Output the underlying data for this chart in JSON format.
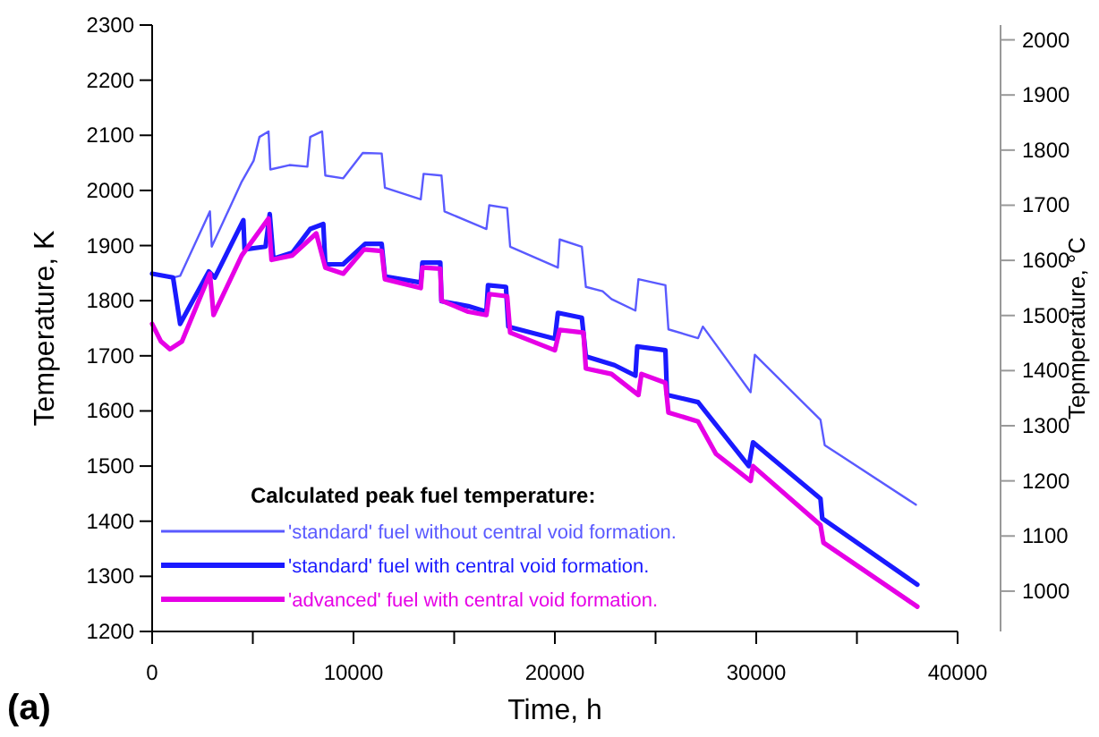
{
  "chart_data": {
    "type": "line",
    "xlabel": "Time, h",
    "ylabel": "Temperature, K",
    "y2label": "Tepmperature, °C",
    "legend_title": "Calculated peak fuel temperature:",
    "legend": "bottom left",
    "annotations": [
      "(a)"
    ],
    "xlim": [
      0,
      40000
    ],
    "xticks": [
      0,
      {
        "value": 5000,
        "label": null
      },
      10000,
      {
        "value": 15000,
        "label": null
      },
      20000,
      {
        "value": 25000,
        "label": null
      },
      30000,
      {
        "value": 35000,
        "label": null
      },
      40000
    ],
    "ylim": [
      1200,
      2300
    ],
    "yticks": [
      1200,
      1300,
      1400,
      1500,
      1600,
      1700,
      1800,
      1900,
      2000,
      2100,
      2200,
      2300
    ],
    "y2lim": [
      926.85,
      2026.85
    ],
    "y2ticks": [
      1000,
      1100,
      1200,
      1300,
      1400,
      1500,
      1600,
      1700,
      1800,
      1900,
      2000
    ],
    "grid": false,
    "line_style": "solid",
    "series": [
      {
        "name": "'standard' fuel without central void formation.",
        "color": "#5a5aff",
        "x": [
          0,
          1040,
          1390,
          2870,
          2960,
          4450,
          5040,
          5330,
          5780,
          5870,
          6820,
          7710,
          7850,
          8440,
          8600,
          9490,
          10460,
          11400,
          11560,
          13340,
          13480,
          14370,
          14520,
          16600,
          16740,
          17630,
          17780,
          20150,
          20240,
          21340,
          21540,
          22370,
          22810,
          24000,
          24150,
          25490,
          25640,
          27110,
          27350,
          29720,
          29930,
          33190,
          33400,
          37930
        ],
        "values": [
          1849,
          1842,
          1845,
          1962,
          1898,
          2016,
          2054,
          2097,
          2107,
          2038,
          2046,
          2043,
          2097,
          2107,
          2027,
          2022,
          2068,
          2067,
          2005,
          1984,
          2030,
          2027,
          1962,
          1930,
          1973,
          1968,
          1898,
          1860,
          1911,
          1898,
          1825,
          1817,
          1803,
          1782,
          1839,
          1828,
          1748,
          1732,
          1753,
          1634,
          1702,
          1584,
          1538,
          1430
        ]
      },
      {
        "name": "'standard' fuel with central void formation.",
        "color": "#1a1aff",
        "x": [
          0,
          1040,
          1390,
          2815,
          3110,
          4530,
          4590,
          5630,
          5840,
          6020,
          6960,
          7850,
          8500,
          8600,
          9480,
          10580,
          11400,
          11560,
          13340,
          13420,
          14310,
          14370,
          15700,
          16600,
          16680,
          17570,
          17690,
          20000,
          20150,
          21340,
          21540,
          22960,
          24000,
          24090,
          25490,
          25570,
          27110,
          28000,
          29630,
          29840,
          33190,
          33280,
          38000
        ],
        "values": [
          1849,
          1842,
          1758,
          1853,
          1842,
          1946,
          1893,
          1898,
          1957,
          1876,
          1887,
          1930,
          1939,
          1866,
          1866,
          1903,
          1903,
          1844,
          1833,
          1869,
          1869,
          1799,
          1790,
          1780,
          1828,
          1825,
          1753,
          1731,
          1778,
          1769,
          1699,
          1683,
          1664,
          1717,
          1710,
          1629,
          1616,
          1575,
          1500,
          1543,
          1441,
          1405,
          1285
        ]
      },
      {
        "name": "'advanced' fuel with central void formation.",
        "color": "#e600e6",
        "x": [
          0,
          440,
          890,
          1480,
          2870,
          3050,
          4450,
          5780,
          5930,
          6960,
          8150,
          8600,
          9490,
          10520,
          11400,
          11560,
          13340,
          13420,
          14310,
          14370,
          15700,
          16600,
          16740,
          17630,
          17780,
          20000,
          20240,
          21420,
          21540,
          22810,
          24150,
          24300,
          25490,
          25640,
          27110,
          28000,
          29720,
          29840,
          33190,
          33340,
          38000
        ],
        "values": [
          1758,
          1726,
          1712,
          1726,
          1849,
          1774,
          1882,
          1949,
          1874,
          1882,
          1922,
          1860,
          1849,
          1893,
          1890,
          1839,
          1823,
          1860,
          1858,
          1800,
          1780,
          1774,
          1812,
          1808,
          1742,
          1710,
          1747,
          1742,
          1677,
          1667,
          1629,
          1667,
          1651,
          1597,
          1581,
          1522,
          1473,
          1500,
          1393,
          1361,
          1245
        ]
      }
    ]
  }
}
